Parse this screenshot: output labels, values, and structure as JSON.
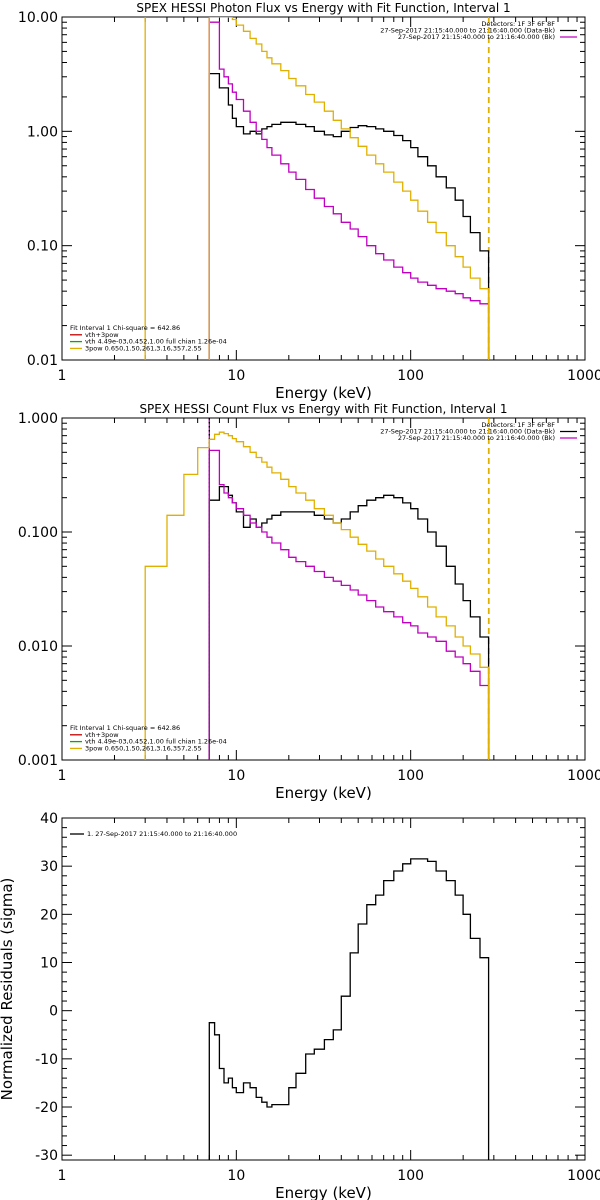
{
  "chart_data": [
    {
      "type": "line",
      "title": "SPEX HESSI Photon Flux vs Energy with Fit Function, Interval 1",
      "xlabel": "Energy (keV)",
      "ylabel": "",
      "xscale": "log",
      "yscale": "log",
      "xlim": [
        1,
        1000
      ],
      "ylim": [
        0.01,
        10
      ],
      "xticks": [
        "1",
        "10",
        "100",
        "1000"
      ],
      "yticks": [
        "0.01",
        "0.10",
        "1.00",
        "10.00"
      ],
      "vertical_lines": [
        {
          "x": 3,
          "color": "#e0b000",
          "style": "solid"
        },
        {
          "x": 7,
          "color": "#c000c0",
          "style": "solid"
        },
        {
          "x": 280,
          "color": "#000000",
          "style": "dashed"
        },
        {
          "x": 280,
          "color": "#e0b000",
          "style": "dashed"
        }
      ],
      "header_lines": [
        "Detectors: 1F 3F 6F 8F",
        "27-Sep-2017 21:15:40.000 to 21:16:40.000 (Data-Bk)",
        "27-Sep-2017 21:15:40.000 to 21:16:40.000 (Bk)"
      ],
      "header_colors": [
        "",
        "#000000",
        "#c000c0"
      ],
      "fit_lines": [
        "Fit Interval 1   Chi-square = 642.86",
        "vth+3pow",
        "vth 4.49e-03,0.452,1.00  full chian 1.26e-04",
        "3pow 0.650,1.50,261,3.16,357,2.55"
      ],
      "fit_colors": [
        "",
        "#c00000",
        "#00b000",
        "#e0b000"
      ],
      "series": [
        {
          "color": "#000000",
          "x": [
            7,
            7.5,
            8,
            8.5,
            9,
            9.5,
            10,
            11,
            12,
            13,
            14,
            15,
            16,
            18,
            20,
            22,
            25,
            28,
            32,
            36,
            40,
            45,
            50,
            56,
            63,
            70,
            80,
            90,
            100,
            110,
            125,
            140,
            160,
            180,
            200,
            220,
            250,
            280
          ],
          "y": [
            3.2,
            3.2,
            2.4,
            2.4,
            1.7,
            1.3,
            1.1,
            0.95,
            1.0,
            0.95,
            1.05,
            1.1,
            1.15,
            1.2,
            1.2,
            1.15,
            1.1,
            1.0,
            0.93,
            0.9,
            1.0,
            1.08,
            1.12,
            1.1,
            1.05,
            1.0,
            0.92,
            0.83,
            0.72,
            0.6,
            0.5,
            0.4,
            0.32,
            0.25,
            0.18,
            0.13,
            0.09,
            0.09
          ]
        },
        {
          "color": "#c000c0",
          "x": [
            7,
            7.5,
            8,
            8.5,
            9,
            9.5,
            10,
            11,
            12,
            13,
            14,
            15,
            16,
            18,
            20,
            22,
            25,
            28,
            32,
            36,
            40,
            45,
            50,
            56,
            63,
            70,
            80,
            90,
            100,
            110,
            125,
            140,
            160,
            180,
            200,
            220,
            250,
            280
          ],
          "y": [
            9.0,
            9.0,
            3.5,
            3.0,
            2.6,
            2.2,
            1.9,
            1.5,
            1.2,
            1.0,
            0.85,
            0.72,
            0.62,
            0.52,
            0.44,
            0.38,
            0.31,
            0.26,
            0.22,
            0.19,
            0.16,
            0.14,
            0.12,
            0.1,
            0.085,
            0.075,
            0.065,
            0.058,
            0.052,
            0.048,
            0.045,
            0.042,
            0.04,
            0.038,
            0.035,
            0.033,
            0.031,
            0.031
          ]
        },
        {
          "color": "#e0b000",
          "x": [
            7,
            7.5,
            8,
            8.5,
            9,
            9.5,
            10,
            11,
            12,
            13,
            14,
            15,
            16,
            18,
            20,
            22,
            25,
            28,
            32,
            36,
            40,
            45,
            50,
            56,
            63,
            70,
            80,
            90,
            100,
            110,
            125,
            140,
            160,
            180,
            200,
            220,
            250,
            280
          ],
          "y": [
            10,
            10,
            10,
            10,
            10,
            9.5,
            8.5,
            7.5,
            6.5,
            5.8,
            5.0,
            4.4,
            3.9,
            3.4,
            2.9,
            2.5,
            2.1,
            1.8,
            1.5,
            1.25,
            1.05,
            0.88,
            0.74,
            0.62,
            0.52,
            0.44,
            0.36,
            0.3,
            0.25,
            0.2,
            0.16,
            0.13,
            0.1,
            0.08,
            0.065,
            0.052,
            0.042,
            0.042
          ]
        }
      ]
    },
    {
      "type": "line",
      "title": "SPEX HESSI Count Flux vs Energy with Fit Function, Interval 1",
      "xlabel": "Energy (keV)",
      "ylabel": "",
      "xscale": "log",
      "yscale": "log",
      "xlim": [
        1,
        1000
      ],
      "ylim": [
        0.001,
        1
      ],
      "xticks": [
        "1",
        "10",
        "100",
        "1000"
      ],
      "yticks": [
        "0.001",
        "0.010",
        "0.100",
        "1.000"
      ],
      "vertical_lines": [
        {
          "x": 7,
          "color": "#c000c0",
          "style": "solid"
        },
        {
          "x": 7,
          "color": "#000000",
          "style": "dotted"
        },
        {
          "x": 280,
          "color": "#000000",
          "style": "dashed"
        },
        {
          "x": 280,
          "color": "#e0b000",
          "style": "dashed"
        }
      ],
      "header_lines": [
        "Detectors: 1F 3F 6F 8F",
        "27-Sep-2017 21:15:40.000 to 21:16:40.000 (Data-Bk)",
        "27-Sep-2017 21:15:40.000 to 21:16:40.000 (Bk)"
      ],
      "header_colors": [
        "",
        "#000000",
        "#c000c0"
      ],
      "fit_lines": [
        "Fit Interval 1   Chi-square = 642.86",
        "vth+3pow",
        "vth 4.49e-03,0.452,1.00  full chian 1.26e-04",
        "3pow 0.650,1.50,261,3.16,357,2.55"
      ],
      "fit_colors": [
        "",
        "#c00000",
        "#00b000",
        "#e0b000"
      ],
      "series": [
        {
          "color": "#000000",
          "x": [
            7,
            7.5,
            8,
            8.5,
            9,
            9.5,
            10,
            11,
            12,
            13,
            14,
            15,
            16,
            18,
            20,
            22,
            25,
            28,
            32,
            36,
            40,
            45,
            50,
            56,
            63,
            70,
            80,
            90,
            100,
            110,
            125,
            140,
            160,
            180,
            200,
            220,
            250,
            280
          ],
          "y": [
            0.19,
            0.19,
            0.25,
            0.25,
            0.21,
            0.18,
            0.15,
            0.11,
            0.13,
            0.11,
            0.12,
            0.13,
            0.14,
            0.15,
            0.15,
            0.15,
            0.15,
            0.14,
            0.13,
            0.12,
            0.13,
            0.15,
            0.17,
            0.19,
            0.2,
            0.21,
            0.2,
            0.18,
            0.16,
            0.13,
            0.1,
            0.075,
            0.05,
            0.035,
            0.025,
            0.018,
            0.012,
            0.012
          ]
        },
        {
          "color": "#c000c0",
          "x": [
            7,
            7.5,
            8,
            8.5,
            9,
            9.5,
            10,
            11,
            12,
            13,
            14,
            15,
            16,
            18,
            20,
            22,
            25,
            28,
            32,
            36,
            40,
            45,
            50,
            56,
            63,
            70,
            80,
            90,
            100,
            110,
            125,
            140,
            160,
            180,
            200,
            220,
            250,
            280
          ],
          "y": [
            0.52,
            0.52,
            0.26,
            0.22,
            0.2,
            0.18,
            0.16,
            0.14,
            0.12,
            0.11,
            0.1,
            0.09,
            0.08,
            0.07,
            0.06,
            0.055,
            0.05,
            0.045,
            0.04,
            0.037,
            0.034,
            0.031,
            0.028,
            0.025,
            0.022,
            0.02,
            0.018,
            0.016,
            0.015,
            0.013,
            0.012,
            0.011,
            0.009,
            0.008,
            0.007,
            0.006,
            0.0045,
            0.0045
          ]
        },
        {
          "color": "#e0b000",
          "x": [
            3,
            4,
            5,
            6,
            7,
            7.5,
            8,
            8.5,
            9,
            9.5,
            10,
            11,
            12,
            13,
            14,
            15,
            16,
            18,
            20,
            22,
            25,
            28,
            32,
            36,
            40,
            45,
            50,
            56,
            63,
            70,
            80,
            90,
            100,
            110,
            125,
            140,
            160,
            180,
            200,
            220,
            250,
            280
          ],
          "y": [
            0.05,
            0.14,
            0.32,
            0.55,
            0.65,
            0.72,
            0.75,
            0.73,
            0.7,
            0.66,
            0.62,
            0.56,
            0.5,
            0.45,
            0.41,
            0.37,
            0.33,
            0.29,
            0.25,
            0.22,
            0.19,
            0.16,
            0.14,
            0.12,
            0.105,
            0.09,
            0.078,
            0.068,
            0.058,
            0.05,
            0.043,
            0.037,
            0.032,
            0.027,
            0.022,
            0.018,
            0.015,
            0.012,
            0.01,
            0.0085,
            0.0065,
            0.0065
          ]
        }
      ]
    },
    {
      "type": "line",
      "title": "",
      "xlabel": "Energy (keV)",
      "ylabel": "Normalized Residuals (sigma)",
      "xscale": "log",
      "yscale": "linear",
      "xlim": [
        1,
        1000
      ],
      "ylim": [
        -31,
        40
      ],
      "xticks": [
        "1",
        "10",
        "100",
        "1000"
      ],
      "yticks": [
        "-30",
        "-20",
        "-10",
        "0",
        "10",
        "20",
        "30",
        "40"
      ],
      "legend": "1. 27-Sep-2017 21:15:40.000 to 21:16:40.000",
      "series": [
        {
          "color": "#000000",
          "x": [
            7,
            7.5,
            8,
            8.5,
            9,
            9.5,
            10,
            11,
            12,
            13,
            14,
            15,
            16,
            18,
            20,
            22,
            25,
            28,
            32,
            36,
            40,
            45,
            50,
            56,
            63,
            70,
            80,
            90,
            100,
            110,
            125,
            140,
            160,
            180,
            200,
            220,
            250,
            280
          ],
          "y": [
            -2.5,
            -5,
            -12,
            -15,
            -14,
            -16,
            -17,
            -15,
            -16,
            -18,
            -19,
            -20,
            -19.5,
            -19.5,
            -16,
            -13,
            -9,
            -8,
            -6,
            -4,
            3,
            12,
            18,
            22,
            24,
            27,
            29,
            30.5,
            31.5,
            31.5,
            31,
            29,
            27,
            24,
            20,
            15,
            11,
            11
          ]
        }
      ]
    }
  ]
}
